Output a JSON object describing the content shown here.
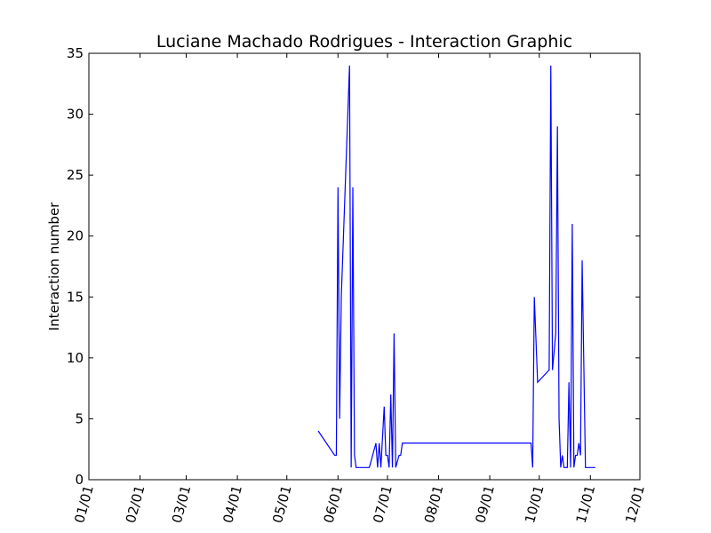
{
  "chart_data": {
    "type": "line",
    "title": "Luciane Machado Rodrigues - Interaction Graphic",
    "xlabel": "",
    "ylabel": "Interaction number",
    "ylim": [
      0,
      35
    ],
    "yticks": [
      0,
      5,
      10,
      15,
      20,
      25,
      30,
      35
    ],
    "xlim": [
      "01/01",
      "12/01"
    ],
    "xticks": [
      "01/01",
      "02/01",
      "03/01",
      "04/01",
      "05/01",
      "06/01",
      "07/01",
      "08/01",
      "09/01",
      "10/01",
      "11/01",
      "12/01"
    ],
    "grid": false,
    "legend": "none",
    "color": "#0000ff",
    "series": [
      {
        "x": [
          "05/20",
          "05/30",
          "05/31",
          "06/01",
          "06/02",
          "06/03",
          "06/08",
          "06/09",
          "06/10",
          "06/11",
          "06/12",
          "06/14",
          "06/20",
          "06/24",
          "06/25",
          "06/26",
          "06/27",
          "06/29",
          "06/30",
          "07/01",
          "07/02",
          "07/03",
          "07/04",
          "07/05",
          "07/06",
          "07/08",
          "07/09",
          "07/10",
          "07/13",
          "07/17",
          "09/26",
          "09/27",
          "09/28",
          "09/30",
          "10/07",
          "10/08",
          "10/09",
          "10/11",
          "10/12",
          "10/13",
          "10/14",
          "10/15",
          "10/16",
          "10/18",
          "10/19",
          "10/20",
          "10/21",
          "10/22",
          "10/23",
          "10/24",
          "10/25",
          "10/26",
          "10/27",
          "10/29",
          "10/30",
          "10/31",
          "11/01",
          "11/04"
        ],
        "y": [
          4,
          2,
          2,
          24,
          5,
          15,
          34,
          1,
          24,
          2,
          1,
          1,
          1,
          3,
          1,
          3,
          1,
          6,
          2,
          2,
          1,
          7,
          1,
          12,
          1,
          2,
          2,
          3,
          3,
          3,
          3,
          1,
          15,
          8,
          9,
          34,
          9,
          12,
          29,
          5,
          1,
          2,
          1,
          1,
          8,
          1,
          21,
          1,
          2,
          2,
          3,
          2,
          18,
          1,
          1,
          1,
          1,
          1
        ]
      }
    ]
  }
}
